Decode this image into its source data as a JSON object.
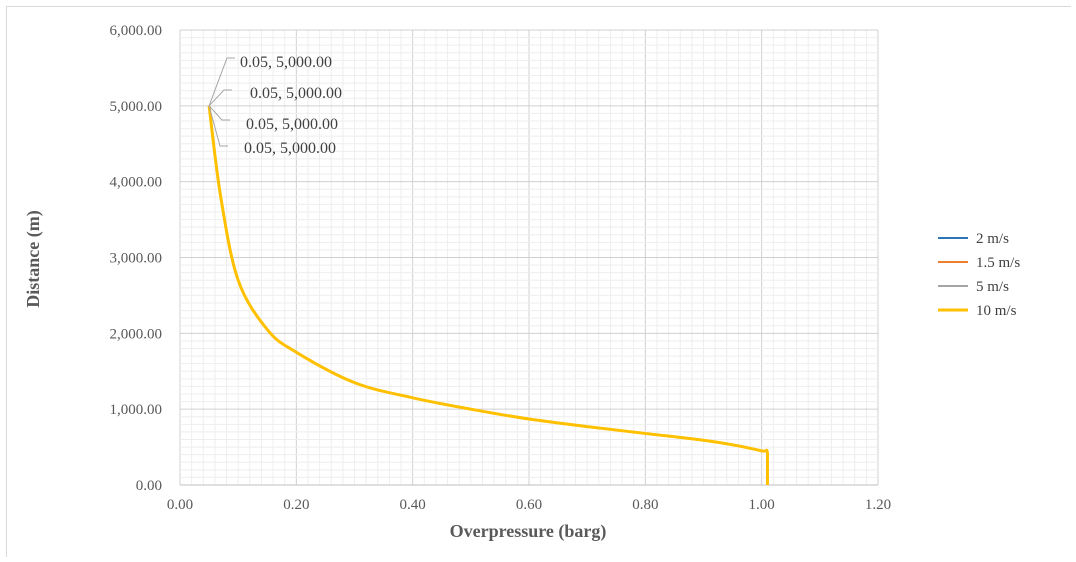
{
  "chart_data": {
    "type": "line",
    "title": "",
    "xlabel": "Overpressure  (barg)",
    "ylabel": "Distance (m)",
    "xlim": [
      0,
      1.2
    ],
    "ylim": [
      0,
      6000
    ],
    "x_ticks": [
      "0.00",
      "0.20",
      "0.40",
      "0.60",
      "0.80",
      "1.00",
      "1.20"
    ],
    "y_ticks": [
      "0.00",
      "1,000.00",
      "2,000.00",
      "3,000.00",
      "4,000.00",
      "5,000.00",
      "6,000.00"
    ],
    "grid": true,
    "legend_position": "right",
    "series": [
      {
        "name": "2 m/s",
        "color": "#2e75b6",
        "x": [
          0.05,
          0.07,
          0.1,
          0.15,
          0.2,
          0.3,
          0.4,
          0.5,
          0.6,
          0.7,
          0.8,
          0.9,
          0.95,
          1.0,
          1.01,
          1.01
        ],
        "y": [
          5000,
          3800,
          2700,
          2050,
          1750,
          1350,
          1150,
          1000,
          870,
          770,
          680,
          590,
          530,
          450,
          420,
          0
        ]
      },
      {
        "name": "1.5 m/s",
        "color": "#ed7d31",
        "x": [
          0.05,
          0.07,
          0.1,
          0.15,
          0.2,
          0.3,
          0.4,
          0.5,
          0.6,
          0.7,
          0.8,
          0.9,
          0.95,
          1.0,
          1.01,
          1.01
        ],
        "y": [
          5000,
          3800,
          2700,
          2050,
          1750,
          1350,
          1150,
          1000,
          870,
          770,
          680,
          590,
          530,
          450,
          420,
          0
        ]
      },
      {
        "name": "5 m/s",
        "color": "#a5a5a5",
        "x": [
          0.05,
          0.07,
          0.1,
          0.15,
          0.2,
          0.3,
          0.4,
          0.5,
          0.6,
          0.7,
          0.8,
          0.9,
          0.95,
          1.0,
          1.01,
          1.01
        ],
        "y": [
          5000,
          3800,
          2700,
          2050,
          1750,
          1350,
          1150,
          1000,
          870,
          770,
          680,
          590,
          530,
          450,
          420,
          0
        ]
      },
      {
        "name": "10 m/s",
        "color": "#ffc000",
        "x": [
          0.05,
          0.07,
          0.1,
          0.15,
          0.2,
          0.3,
          0.4,
          0.5,
          0.6,
          0.7,
          0.8,
          0.9,
          0.95,
          1.0,
          1.01,
          1.01
        ],
        "y": [
          5000,
          3800,
          2700,
          2050,
          1750,
          1350,
          1150,
          1000,
          870,
          770,
          680,
          590,
          530,
          450,
          420,
          0
        ]
      }
    ],
    "annotations": [
      "0.05, 5,000.00",
      "0.05, 5,000.00",
      "0.05, 5,000.00",
      "0.05, 5,000.00"
    ]
  }
}
